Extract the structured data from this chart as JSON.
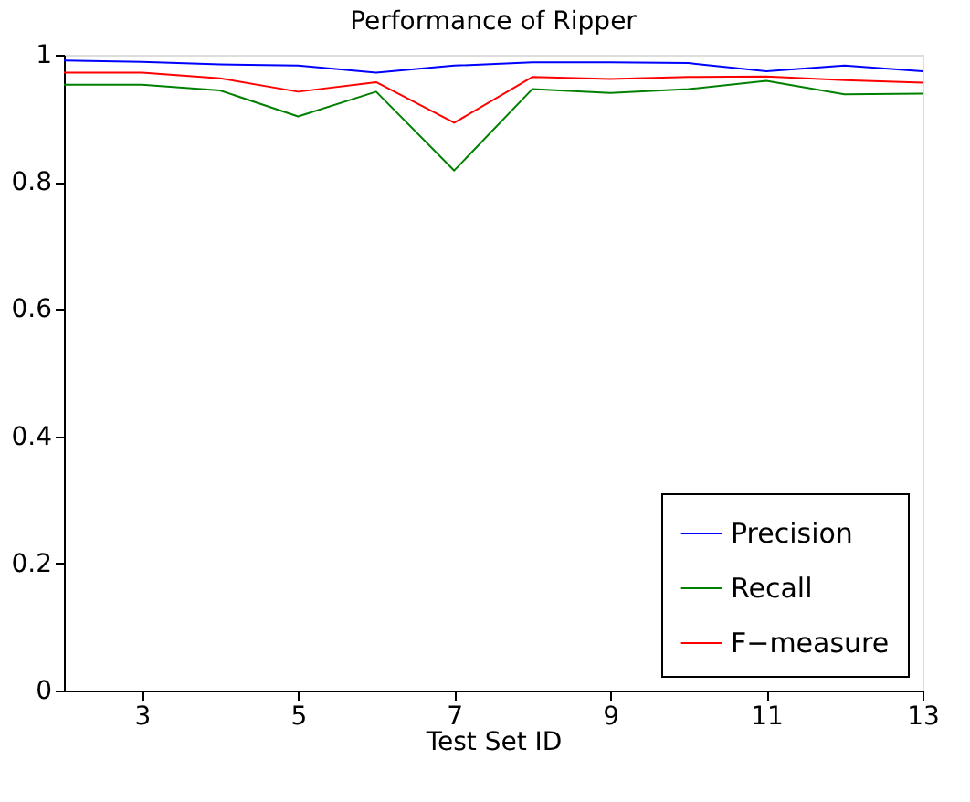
{
  "chart_data": {
    "type": "line",
    "title": "Performance of Ripper",
    "xlabel": "Test Set ID",
    "x": [
      2,
      3,
      4,
      5,
      6,
      7,
      8,
      9,
      10,
      11,
      12,
      13
    ],
    "series": [
      {
        "name": "Precision",
        "color": "#0000ff",
        "values": [
          0.991,
          0.989,
          0.985,
          0.983,
          0.972,
          0.983,
          0.988,
          0.988,
          0.987,
          0.974,
          0.983,
          0.974
        ]
      },
      {
        "name": "Recall",
        "color": "#008000",
        "values": [
          0.953,
          0.953,
          0.944,
          0.903,
          0.942,
          0.818,
          0.946,
          0.94,
          0.946,
          0.959,
          0.938,
          0.939
        ]
      },
      {
        "name": "F−measure",
        "color": "#ff0000",
        "values": [
          0.972,
          0.972,
          0.963,
          0.942,
          0.957,
          0.893,
          0.965,
          0.962,
          0.965,
          0.966,
          0.96,
          0.956
        ]
      }
    ],
    "xlim": [
      2,
      13
    ],
    "xticks": [
      3,
      5,
      7,
      9,
      11,
      13
    ],
    "ylim": [
      0,
      1
    ],
    "yticks": [
      0,
      0.2,
      0.4,
      0.6,
      0.8,
      1
    ],
    "grid": false,
    "legend": "bottom right",
    "marker": "none",
    "line_style": "solid"
  }
}
